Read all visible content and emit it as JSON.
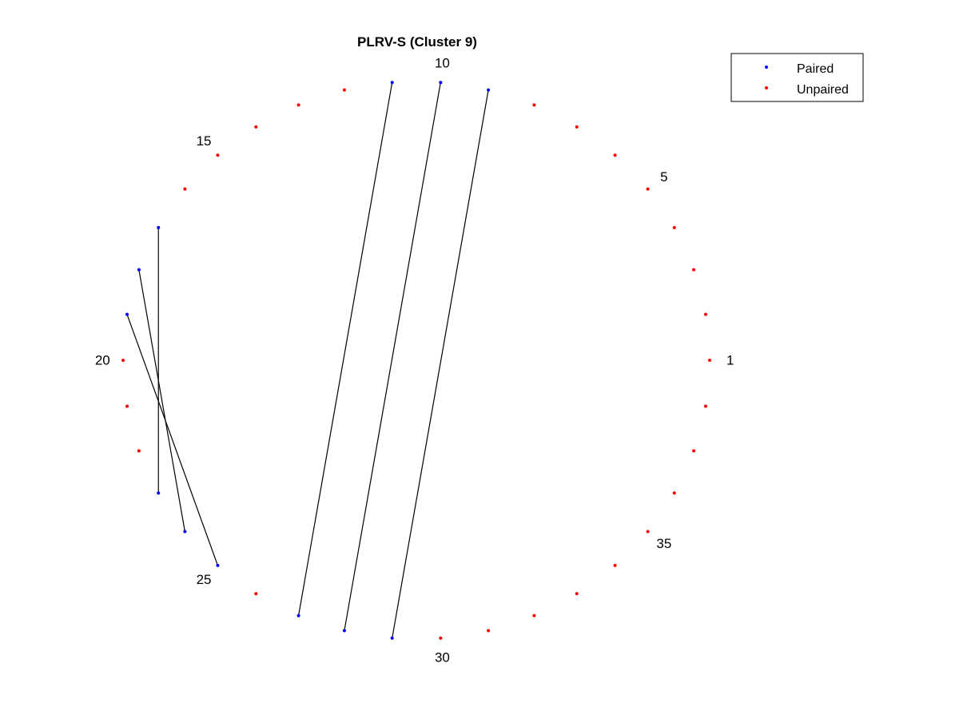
{
  "chart_data": {
    "type": "circular-arc-diagram",
    "title": "PLRV-S (Cluster 9)",
    "n_positions": 38,
    "start_position": 1,
    "direction": "counterclockwise",
    "position_labels": [
      {
        "position": 1,
        "label": "1"
      },
      {
        "position": 5,
        "label": "5"
      },
      {
        "position": 10,
        "label": "10"
      },
      {
        "position": 15,
        "label": "15"
      },
      {
        "position": 20,
        "label": "20"
      },
      {
        "position": 25,
        "label": "25"
      },
      {
        "position": 30,
        "label": "30"
      },
      {
        "position": 35,
        "label": "35"
      }
    ],
    "series": [
      {
        "name": "Paired",
        "color": "#0000ff",
        "positions": [
          9,
          10,
          11,
          17,
          18,
          19,
          23,
          24,
          25,
          27,
          28,
          29
        ]
      },
      {
        "name": "Unpaired",
        "color": "#ff0000",
        "positions": [
          1,
          2,
          3,
          4,
          5,
          6,
          7,
          8,
          12,
          13,
          14,
          15,
          16,
          20,
          21,
          22,
          26,
          30,
          31,
          32,
          33,
          34,
          35,
          36,
          37,
          38
        ]
      }
    ],
    "pairs": [
      [
        9,
        29
      ],
      [
        10,
        28
      ],
      [
        11,
        27
      ],
      [
        17,
        23
      ],
      [
        18,
        24
      ],
      [
        19,
        25
      ]
    ],
    "legend": {
      "placement": "top-right",
      "entries": [
        "Paired",
        "Unpaired"
      ]
    },
    "line_color": "#000000"
  }
}
